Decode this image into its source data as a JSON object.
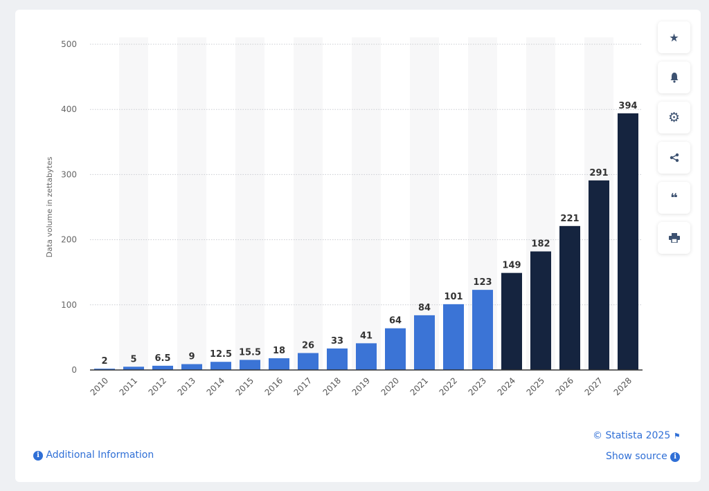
{
  "chart_data": {
    "type": "bar",
    "title": "",
    "xlabel": "",
    "ylabel": "Data volume in zettabytes",
    "ylim": [
      0,
      500
    ],
    "yticks": [
      0,
      100,
      200,
      300,
      400,
      500
    ],
    "grid": true,
    "categories": [
      "2010",
      "2011",
      "2012",
      "2013",
      "2014",
      "2015",
      "2016",
      "2017",
      "2018",
      "2019",
      "2020",
      "2021",
      "2022",
      "2023",
      "2024",
      "2025",
      "2026",
      "2027",
      "2028"
    ],
    "values": [
      2,
      5,
      6.5,
      9,
      12.5,
      15.5,
      18,
      26,
      33,
      41,
      64,
      84,
      101,
      123,
      149,
      182,
      221,
      291,
      394
    ],
    "value_labels": [
      "2",
      "5",
      "6.5",
      "9",
      "12.5",
      "15.5",
      "18",
      "26",
      "33",
      "41",
      "64",
      "84",
      "101",
      "123",
      "149",
      "182",
      "221",
      "291",
      "394"
    ],
    "forecast_from": "2024",
    "colors": {
      "actual": "#3b74d6",
      "forecast": "#15243f",
      "band": "#f7f7f8"
    }
  },
  "side_buttons": [
    {
      "name": "favorite",
      "icon": "★"
    },
    {
      "name": "notification",
      "icon": "bell"
    },
    {
      "name": "settings",
      "icon": "⚙"
    },
    {
      "name": "share",
      "icon": "share"
    },
    {
      "name": "cite",
      "icon": "❝"
    },
    {
      "name": "print",
      "icon": "print"
    }
  ],
  "footer": {
    "copyright": "© Statista 2025",
    "show_source": "Show source",
    "additional_info": "Additional Information"
  }
}
